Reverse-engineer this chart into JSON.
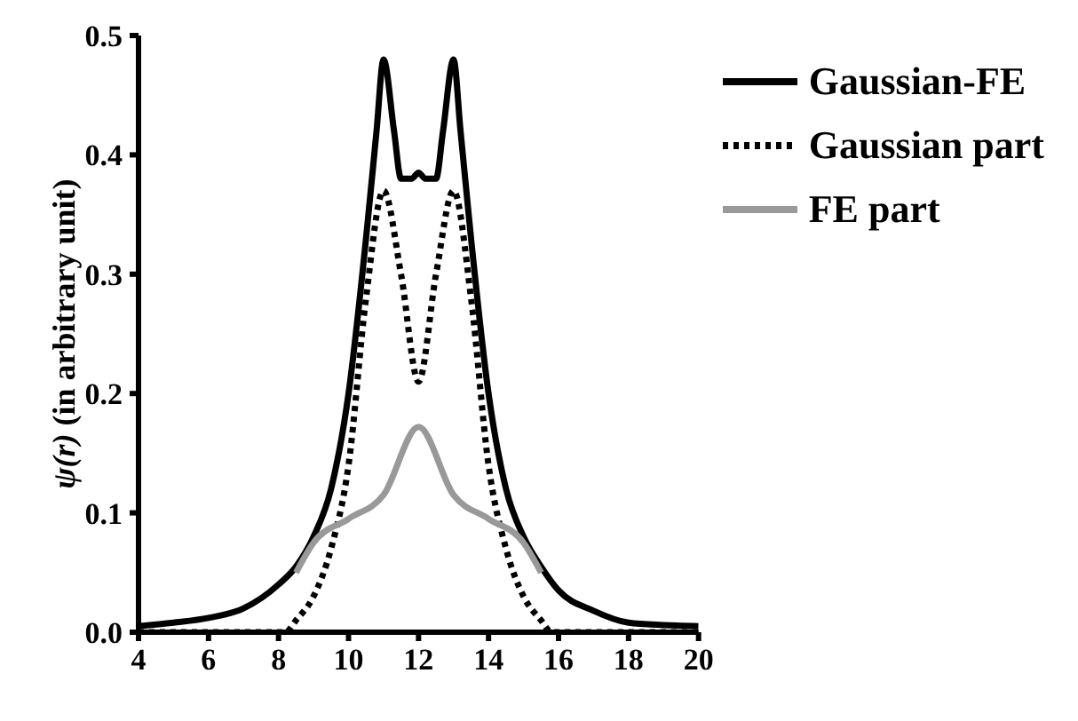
{
  "chart_data": {
    "type": "line",
    "ylabel": "ψ(r) (in arbitrary unit)",
    "xlim": [
      4,
      20
    ],
    "xticks": [
      4,
      6,
      8,
      10,
      12,
      14,
      16,
      18,
      20
    ],
    "ylim": [
      0,
      0.5
    ],
    "yticks": [
      {
        "value": 0,
        "label": "0.0"
      },
      0.1,
      0.2,
      0.3,
      0.4,
      0.5
    ],
    "grid": false,
    "legend": "top right",
    "marker": "none",
    "series": [
      {
        "name": "Gaussian-FE",
        "color": "#000000",
        "line_style": "solid",
        "x": [
          4,
          5,
          6,
          7,
          8,
          8.5,
          9,
          9.5,
          10,
          10.5,
          10.8,
          11,
          11.3,
          11.5,
          11.8,
          12,
          12.2,
          12.5,
          12.7,
          13,
          13.2,
          13.5,
          14,
          14.5,
          15,
          15.5,
          16,
          17,
          18,
          19,
          20
        ],
        "values": [
          0.005,
          0.008,
          0.012,
          0.02,
          0.04,
          0.055,
          0.08,
          0.12,
          0.2,
          0.33,
          0.42,
          0.48,
          0.42,
          0.38,
          0.38,
          0.385,
          0.38,
          0.38,
          0.42,
          0.48,
          0.42,
          0.33,
          0.2,
          0.12,
          0.08,
          0.055,
          0.035,
          0.018,
          0.008,
          0.006,
          0.005
        ]
      },
      {
        "name": "Gaussian part",
        "color": "#000000",
        "line_style": "dotted",
        "x": [
          4,
          6,
          8,
          8.2,
          8.5,
          9,
          9.5,
          10,
          10.5,
          11,
          11.5,
          12,
          12.5,
          13,
          13.5,
          14,
          14.5,
          15,
          15.5,
          15.8,
          16,
          18,
          20
        ],
        "values": [
          0,
          0,
          0,
          0,
          0.01,
          0.03,
          0.07,
          0.14,
          0.28,
          0.37,
          0.3,
          0.21,
          0.3,
          0.37,
          0.28,
          0.14,
          0.07,
          0.03,
          0.01,
          0,
          0,
          0,
          0
        ]
      },
      {
        "name": "FE part",
        "color": "#999999",
        "line_style": "solid",
        "x": [
          8.5,
          9,
          10,
          11,
          12,
          13,
          14,
          15,
          15.5
        ],
        "values": [
          0.05,
          0.075,
          0.095,
          0.115,
          0.172,
          0.115,
          0.095,
          0.075,
          0.05
        ]
      }
    ]
  }
}
